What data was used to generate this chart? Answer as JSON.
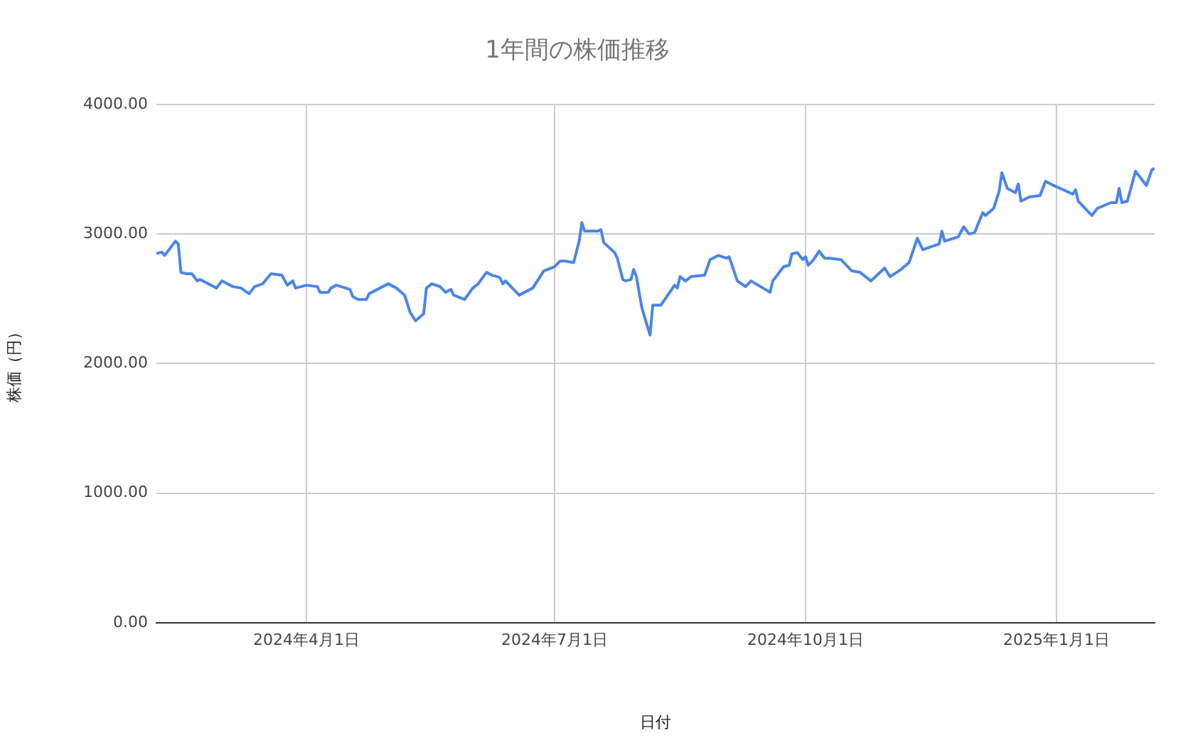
{
  "chart_data": {
    "type": "line",
    "title": "1年間の株価推移",
    "xlabel": "日付",
    "ylabel": "株価（円）",
    "x": [
      "2024-02-06",
      "2024-02-08",
      "2024-02-09",
      "2024-02-13",
      "2024-02-14",
      "2024-02-15",
      "2024-02-17",
      "2024-02-19",
      "2024-02-21",
      "2024-02-22",
      "2024-02-28",
      "2024-03-01",
      "2024-03-05",
      "2024-03-08",
      "2024-03-11",
      "2024-03-13",
      "2024-03-16",
      "2024-03-19",
      "2024-03-23",
      "2024-03-25",
      "2024-03-27",
      "2024-03-28",
      "2024-04-01",
      "2024-04-05",
      "2024-04-06",
      "2024-04-09",
      "2024-04-10",
      "2024-04-12",
      "2024-04-17",
      "2024-04-18",
      "2024-04-20",
      "2024-04-23",
      "2024-04-24",
      "2024-04-25",
      "2024-05-01",
      "2024-05-04",
      "2024-05-07",
      "2024-05-09",
      "2024-05-11",
      "2024-05-14",
      "2024-05-15",
      "2024-05-17",
      "2024-05-20",
      "2024-05-22",
      "2024-05-24",
      "2024-05-25",
      "2024-05-29",
      "2024-06-01",
      "2024-06-03",
      "2024-06-06",
      "2024-06-08",
      "2024-06-10",
      "2024-06-11",
      "2024-06-12",
      "2024-06-13",
      "2024-06-18",
      "2024-06-20",
      "2024-06-23",
      "2024-06-27",
      "2024-07-01",
      "2024-07-03",
      "2024-07-05",
      "2024-07-08",
      "2024-07-10",
      "2024-07-11",
      "2024-07-12",
      "2024-07-17",
      "2024-07-18",
      "2024-07-19",
      "2024-07-23",
      "2024-07-24",
      "2024-07-26",
      "2024-07-27",
      "2024-07-29",
      "2024-07-30",
      "2024-07-31",
      "2024-08-02",
      "2024-08-05",
      "2024-08-06",
      "2024-08-09",
      "2024-08-14",
      "2024-08-15",
      "2024-08-16",
      "2024-08-18",
      "2024-08-20",
      "2024-08-25",
      "2024-08-27",
      "2024-08-28",
      "2024-08-30",
      "2024-09-02",
      "2024-09-03",
      "2024-09-06",
      "2024-09-09",
      "2024-09-11",
      "2024-09-18",
      "2024-09-19",
      "2024-09-23",
      "2024-09-25",
      "2024-09-26",
      "2024-09-28",
      "2024-09-30",
      "2024-10-01",
      "2024-10-02",
      "2024-10-04",
      "2024-10-06",
      "2024-10-08",
      "2024-10-10",
      "2024-10-14",
      "2024-10-16",
      "2024-10-18",
      "2024-10-21",
      "2024-10-25",
      "2024-10-30",
      "2024-11-01",
      "2024-11-05",
      "2024-11-08",
      "2024-11-11",
      "2024-11-13",
      "2024-11-19",
      "2024-11-20",
      "2024-11-21",
      "2024-11-26",
      "2024-11-28",
      "2024-11-30",
      "2024-12-02",
      "2024-12-05",
      "2024-12-06",
      "2024-12-09",
      "2024-12-11",
      "2024-12-12",
      "2024-12-14",
      "2024-12-17",
      "2024-12-18",
      "2024-12-19",
      "2024-12-22",
      "2024-12-26",
      "2024-12-28",
      "2024-12-31",
      "2025-01-07",
      "2025-01-08",
      "2025-01-09",
      "2025-01-14",
      "2025-01-16",
      "2025-01-21",
      "2025-01-23",
      "2025-01-24",
      "2025-01-25",
      "2025-01-27",
      "2025-01-30",
      "2025-02-03",
      "2025-02-05",
      "2025-02-06"
    ],
    "series": [
      {
        "color": "#4a86e8",
        "values": [
          2850,
          2860,
          2835,
          2945,
          2923,
          2704,
          2693,
          2693,
          2638,
          2649,
          2583,
          2638,
          2594,
          2583,
          2539,
          2594,
          2616,
          2693,
          2682,
          2605,
          2638,
          2583,
          2605,
          2594,
          2550,
          2550,
          2583,
          2605,
          2572,
          2517,
          2495,
          2495,
          2539,
          2550,
          2616,
          2583,
          2528,
          2396,
          2330,
          2385,
          2583,
          2616,
          2594,
          2550,
          2572,
          2528,
          2495,
          2583,
          2616,
          2704,
          2682,
          2671,
          2660,
          2616,
          2638,
          2528,
          2550,
          2583,
          2715,
          2748,
          2791,
          2791,
          2780,
          2945,
          3088,
          3022,
          3022,
          3033,
          2934,
          2857,
          2813,
          2649,
          2638,
          2649,
          2726,
          2671,
          2429,
          2220,
          2451,
          2451,
          2605,
          2583,
          2671,
          2638,
          2671,
          2682,
          2802,
          2813,
          2835,
          2813,
          2824,
          2638,
          2594,
          2638,
          2550,
          2638,
          2748,
          2758,
          2846,
          2857,
          2802,
          2824,
          2758,
          2802,
          2868,
          2813,
          2813,
          2802,
          2758,
          2715,
          2704,
          2638,
          2737,
          2671,
          2726,
          2780,
          2967,
          2879,
          2923,
          3022,
          2945,
          2978,
          3055,
          3000,
          3011,
          3165,
          3143,
          3198,
          3330,
          3473,
          3352,
          3319,
          3385,
          3253,
          3286,
          3297,
          3407,
          3374,
          3308,
          3341,
          3253,
          3143,
          3198,
          3242,
          3242,
          3352,
          3242,
          3253,
          3484,
          3374,
          3495,
          3506
        ]
      }
    ],
    "xlim": [
      "2024-02-06",
      "2025-02-06"
    ],
    "xticks": [
      {
        "value": "2024-04-01",
        "label": "2024年4月1日"
      },
      {
        "value": "2024-07-01",
        "label": "2024年7月1日"
      },
      {
        "value": "2024-10-01",
        "label": "2024年10月1日"
      },
      {
        "value": "2025-01-01",
        "label": "2025年1月1日"
      }
    ],
    "ylim": [
      0,
      4000
    ],
    "yticks": [
      {
        "value": 0,
        "label": "0.00"
      },
      {
        "value": 1000,
        "label": "1000.00"
      },
      {
        "value": 2000,
        "label": "2000.00"
      },
      {
        "value": 3000,
        "label": "3000.00"
      },
      {
        "value": 4000,
        "label": "4000.00"
      }
    ],
    "grid": true,
    "legend": false,
    "marker": "none",
    "line_style": "solid"
  }
}
